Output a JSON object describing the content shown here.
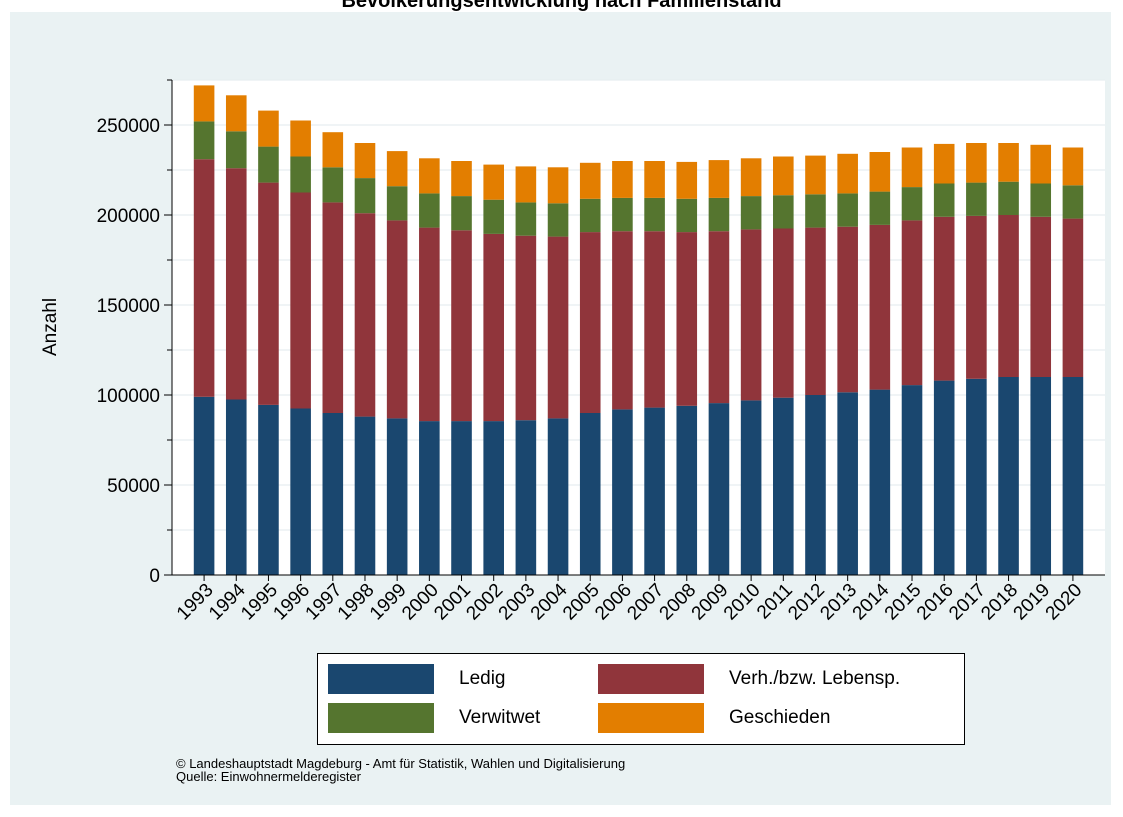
{
  "title": "Bevölkerungsentwicklung nach Familienstand",
  "colors": {
    "ledig": "#1a476f",
    "verheiratet": "#90353b",
    "verwitwet": "#55752f",
    "geschieden": "#e37e00",
    "background": "#eaf2f3",
    "plot_background": "#ffffff"
  },
  "chart_data": {
    "type": "bar",
    "stacked": true,
    "title": "Bevölkerungsentwicklung nach Familienstand",
    "ylabel": "Anzahl",
    "xlabel": "",
    "ylim": [
      0,
      275000
    ],
    "yticks": [
      0,
      50000,
      100000,
      150000,
      200000,
      250000
    ],
    "ytick_labels": [
      "0",
      "50000",
      "100000",
      "150000",
      "200000",
      "250000"
    ],
    "grid": true,
    "legend_position": "bottom",
    "categories": [
      "1993",
      "1994",
      "1995",
      "1996",
      "1997",
      "1998",
      "1999",
      "2000",
      "2001",
      "2002",
      "2003",
      "2004",
      "2005",
      "2006",
      "2007",
      "2008",
      "2009",
      "2010",
      "2011",
      "2012",
      "2013",
      "2014",
      "2015",
      "2016",
      "2017",
      "2018",
      "2019",
      "2020"
    ],
    "series": [
      {
        "name": "Ledig",
        "color_key": "ledig",
        "values": [
          99000,
          97500,
          94500,
          92500,
          90000,
          88000,
          87000,
          85500,
          85500,
          85500,
          86000,
          87000,
          90000,
          92000,
          93000,
          94000,
          95500,
          97000,
          98500,
          100000,
          101500,
          103000,
          105500,
          108000,
          109000,
          110000,
          110000,
          110000
        ]
      },
      {
        "name": "Verh./bzw. Lebensp.",
        "color_key": "verheiratet",
        "values": [
          132000,
          128500,
          123500,
          120000,
          117000,
          113000,
          110000,
          107500,
          106000,
          104000,
          102500,
          101000,
          100500,
          99000,
          98000,
          96500,
          95500,
          95000,
          94000,
          93000,
          92000,
          91500,
          91500,
          91000,
          90500,
          90000,
          89000,
          88000
        ]
      },
      {
        "name": "Verwitwet",
        "color_key": "verwitwet",
        "values": [
          21000,
          20500,
          20000,
          20000,
          19500,
          19500,
          19000,
          19000,
          19000,
          19000,
          18500,
          18500,
          18500,
          18500,
          18500,
          18500,
          18500,
          18500,
          18500,
          18500,
          18500,
          18500,
          18500,
          18500,
          18500,
          18500,
          18500,
          18500
        ]
      },
      {
        "name": "Geschieden",
        "color_key": "geschieden",
        "values": [
          20000,
          20000,
          20000,
          20000,
          19500,
          19500,
          19500,
          19500,
          19500,
          19500,
          20000,
          20000,
          20000,
          20500,
          20500,
          20500,
          21000,
          21000,
          21500,
          21500,
          22000,
          22000,
          22000,
          22000,
          22000,
          21500,
          21500,
          21000
        ]
      }
    ]
  },
  "legend": {
    "items": [
      {
        "label": "Ledig",
        "color_key": "ledig"
      },
      {
        "label": "Verh./bzw. Lebensp.",
        "color_key": "verheiratet"
      },
      {
        "label": "Verwitwet",
        "color_key": "verwitwet"
      },
      {
        "label": "Geschieden",
        "color_key": "geschieden"
      }
    ]
  },
  "footer": {
    "copyright": "©  Landeshauptstadt Magdeburg - Amt für Statistik, Wahlen und Digitalisierung",
    "source": "Quelle: Einwohnermelderegister"
  }
}
